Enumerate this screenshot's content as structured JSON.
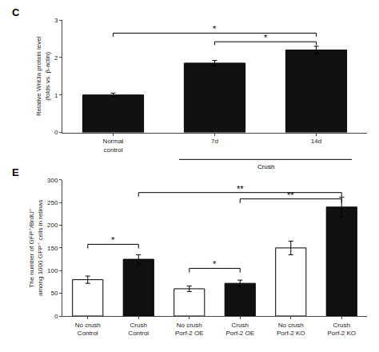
{
  "chart_data": [
    {
      "type": "bar",
      "title": "C",
      "categories": [
        "Normal\ncontrol",
        "7d",
        "14d"
      ],
      "values": [
        1.0,
        1.85,
        2.2
      ],
      "errors": [
        0.05,
        0.07,
        0.1
      ],
      "color": "#111111",
      "ylabel": "Relative Wnt3a protein level\n(folds vs. β-actin)",
      "ylim": [
        0,
        3.0
      ],
      "yticks": [
        0,
        1,
        2,
        3
      ],
      "grid": false,
      "significance": [
        {
          "x1": 0,
          "x2": 2,
          "y": 2.65,
          "label": "*"
        },
        {
          "x1": 1,
          "x2": 2,
          "y": 2.42,
          "label": "*"
        }
      ],
      "group_labels": [
        {
          "label": "Crush",
          "from": 1,
          "to": 2
        }
      ]
    },
    {
      "type": "bar",
      "title": "E",
      "categories": [
        "No crush\nControl",
        "Crush\nControl",
        "No crush\nPorf-2 OE",
        "Crush\nPorf-2 OE",
        "No crush\nPorf-2 KO",
        "Crush\nPorf-2 KO"
      ],
      "values": [
        80,
        125,
        60,
        72,
        150,
        240
      ],
      "errors": [
        8,
        10,
        6,
        7,
        15,
        22
      ],
      "colors": [
        "#ffffff",
        "#111111",
        "#ffffff",
        "#111111",
        "#ffffff",
        "#111111"
      ],
      "ylabel": "The number of GFP⁺/BrdU⁺\namong 1000 GFP⁺ cells in retinas",
      "ylim": [
        0,
        300
      ],
      "yticks": [
        0,
        50,
        100,
        150,
        200,
        250,
        300
      ],
      "grid": false,
      "significance": [
        {
          "x1": 0,
          "x2": 1,
          "y": 158,
          "label": "*"
        },
        {
          "x1": 2,
          "x2": 3,
          "y": 105,
          "label": "*"
        },
        {
          "x1": 1,
          "x2": 5,
          "y": 272,
          "label": "**"
        },
        {
          "x1": 3,
          "x2": 5,
          "y": 258,
          "label": "**"
        }
      ]
    }
  ]
}
